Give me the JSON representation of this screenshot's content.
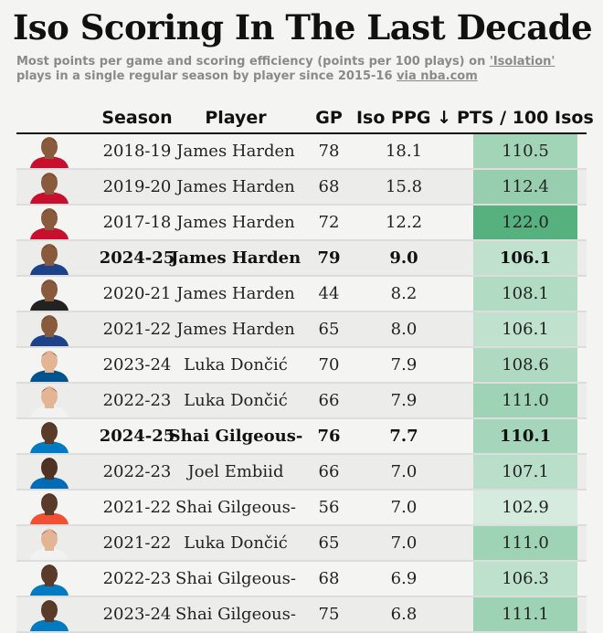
{
  "header": {
    "title": "Iso Scoring In The Last Decade",
    "subtitle_part1": "Most points per game and scoring efficiency (points per 100 plays) on ",
    "subtitle_link1": "'Isolation'",
    "subtitle_part2": " plays in a single regular season by player since 2015-16 ",
    "subtitle_link2": "via nba.com"
  },
  "chart_data": {
    "type": "table",
    "columns": [
      "Season",
      "Player",
      "GP",
      "Iso PPG ↓",
      "PTS / 100 Isos"
    ],
    "rows": [
      {
        "season": "2018-19",
        "player": "James Harden",
        "gp": "78",
        "iso_ppg": "18.1",
        "pts100": "110.5",
        "bold": false,
        "skin": "#8a5a3c",
        "jersey": "#c8102e"
      },
      {
        "season": "2019-20",
        "player": "James Harden",
        "gp": "68",
        "iso_ppg": "15.8",
        "pts100": "112.4",
        "bold": false,
        "skin": "#8a5a3c",
        "jersey": "#c8102e"
      },
      {
        "season": "2017-18",
        "player": "James Harden",
        "gp": "72",
        "iso_ppg": "12.2",
        "pts100": "122.0",
        "bold": false,
        "skin": "#8a5a3c",
        "jersey": "#c8102e"
      },
      {
        "season": "2024-25",
        "player": "James Harden",
        "gp": "79",
        "iso_ppg": "9.0",
        "pts100": "106.1",
        "bold": true,
        "skin": "#8a5a3c",
        "jersey": "#1d428a"
      },
      {
        "season": "2020-21",
        "player": "James Harden",
        "gp": "44",
        "iso_ppg": "8.2",
        "pts100": "108.1",
        "bold": false,
        "skin": "#8a5a3c",
        "jersey": "#222222"
      },
      {
        "season": "2021-22",
        "player": "James Harden",
        "gp": "65",
        "iso_ppg": "8.0",
        "pts100": "106.1",
        "bold": false,
        "skin": "#8a5a3c",
        "jersey": "#1d428a"
      },
      {
        "season": "2023-24",
        "player": "Luka Dončić",
        "gp": "70",
        "iso_ppg": "7.9",
        "pts100": "108.6",
        "bold": false,
        "skin": "#e3b594",
        "jersey": "#00538c"
      },
      {
        "season": "2022-23",
        "player": "Luka Dončić",
        "gp": "66",
        "iso_ppg": "7.9",
        "pts100": "111.0",
        "bold": false,
        "skin": "#e3b594",
        "jersey": "#f2f2f2"
      },
      {
        "season": "2024-25",
        "player": "Shai Gilgeous-",
        "gp": "76",
        "iso_ppg": "7.7",
        "pts100": "110.1",
        "bold": true,
        "skin": "#5a3a28",
        "jersey": "#007ac1"
      },
      {
        "season": "2022-23",
        "player": "Joel Embiid",
        "gp": "66",
        "iso_ppg": "7.0",
        "pts100": "107.1",
        "bold": false,
        "skin": "#4e3224",
        "jersey": "#006bb6"
      },
      {
        "season": "2021-22",
        "player": "Shai Gilgeous-",
        "gp": "56",
        "iso_ppg": "7.0",
        "pts100": "102.9",
        "bold": false,
        "skin": "#5a3a28",
        "jersey": "#f05133"
      },
      {
        "season": "2021-22",
        "player": "Luka Dončić",
        "gp": "65",
        "iso_ppg": "7.0",
        "pts100": "111.0",
        "bold": false,
        "skin": "#e3b594",
        "jersey": "#f2f2f2"
      },
      {
        "season": "2022-23",
        "player": "Shai Gilgeous-",
        "gp": "68",
        "iso_ppg": "6.9",
        "pts100": "106.3",
        "bold": false,
        "skin": "#5a3a28",
        "jersey": "#007ac1"
      },
      {
        "season": "2023-24",
        "player": "Shai Gilgeous-",
        "gp": "75",
        "iso_ppg": "6.8",
        "pts100": "111.1",
        "bold": false,
        "skin": "#5a3a28",
        "jersey": "#007ac1"
      }
    ],
    "color_scale": {
      "column": "pts100",
      "min": 100,
      "max": 123,
      "low_color": "#e8f4ec",
      "high_color": "#4fae7a"
    }
  }
}
